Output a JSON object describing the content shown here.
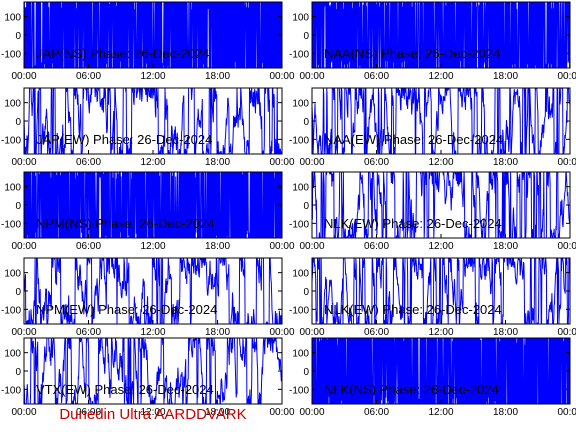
{
  "footer": {
    "text": "Dunedin Ultra AARDDVARK",
    "color": "#cc0000"
  },
  "trace_color": "#0000ff",
  "chart_data": [
    {
      "type": "line",
      "label": "JAP(NS) Phase: 26-Dec-2024",
      "ylim": [
        -180,
        180
      ],
      "yticks": [
        100,
        0,
        -100
      ],
      "xticks": [
        "00:00",
        "06:00",
        "12:00",
        "18:00",
        "00:00"
      ],
      "grid": false,
      "signal": "saturated",
      "seed": 11
    },
    {
      "type": "line",
      "label": "NAA(NS) Phase: 26-Dec-2024",
      "ylim": [
        -180,
        180
      ],
      "yticks": [
        100,
        0,
        -100
      ],
      "xticks": [
        "00:00",
        "06:00",
        "12:00",
        "18:00",
        "00:00"
      ],
      "grid": false,
      "signal": "saturated",
      "seed": 23
    },
    {
      "type": "line",
      "label": "JAP(EW) Phase: 26-Dec-2024",
      "ylim": [
        -180,
        180
      ],
      "yticks": [
        100,
        0,
        -100
      ],
      "xticks": [
        "00:00",
        "06:00",
        "12:00",
        "18:00",
        "00:00"
      ],
      "grid": false,
      "signal": "noisy",
      "seed": 37
    },
    {
      "type": "line",
      "label": "NAA(EW) Phase: 26-Dec-2024",
      "ylim": [
        -180,
        180
      ],
      "yticks": [
        100,
        0,
        -100
      ],
      "xticks": [
        "00:00",
        "06:00",
        "12:00",
        "18:00",
        "00:00"
      ],
      "grid": false,
      "signal": "noisy",
      "seed": 41
    },
    {
      "type": "line",
      "label": "NPM(NS) Phase: 26-Dec-2024",
      "ylim": [
        -180,
        180
      ],
      "yticks": [
        100,
        0,
        -100
      ],
      "xticks": [
        "00:00",
        "06:00",
        "12:00",
        "18:00",
        "00:00"
      ],
      "grid": false,
      "signal": "saturated",
      "seed": 53
    },
    {
      "type": "line",
      "label": "NLK(EW) Phase: 26-Dec-2024",
      "ylim": [
        -180,
        180
      ],
      "yticks": [
        100,
        0,
        -100
      ],
      "xticks": [
        "00:00",
        "06:00",
        "12:00",
        "18:00",
        "00:00"
      ],
      "grid": false,
      "signal": "noisy",
      "seed": 67
    },
    {
      "type": "line",
      "label": "NPM(EW) Phase: 26-Dec-2024",
      "ylim": [
        -180,
        180
      ],
      "yticks": [
        100,
        0,
        -100
      ],
      "xticks": [
        "00:00",
        "06:00",
        "12:00",
        "18:00",
        "00:00"
      ],
      "grid": false,
      "signal": "noisy",
      "seed": 71
    },
    {
      "type": "line",
      "label": "NLK(EW) Phase: 26-Dec-2024",
      "ylim": [
        -180,
        180
      ],
      "yticks": [
        100,
        0,
        -100
      ],
      "xticks": [
        "00:00",
        "06:00",
        "12:00",
        "18:00",
        "00:00"
      ],
      "grid": false,
      "signal": "noisy",
      "seed": 83
    },
    {
      "type": "line",
      "label": "VTX(EW) Phase: 26-Dec-2024",
      "ylim": [
        -180,
        180
      ],
      "yticks": [
        100,
        0,
        -100
      ],
      "xticks": [
        "00:00",
        "06:00",
        "12:00",
        "18:00",
        "00:00"
      ],
      "grid": false,
      "signal": "noisy",
      "seed": 97
    },
    {
      "type": "line",
      "label": "NLK(NS) Phase: 26-Dec-2024",
      "ylim": [
        -180,
        180
      ],
      "yticks": [
        100,
        0,
        -100
      ],
      "xticks": [
        "00:00",
        "06:00",
        "12:00",
        "18:00",
        "00:00"
      ],
      "grid": false,
      "signal": "saturated",
      "seed": 101
    }
  ]
}
